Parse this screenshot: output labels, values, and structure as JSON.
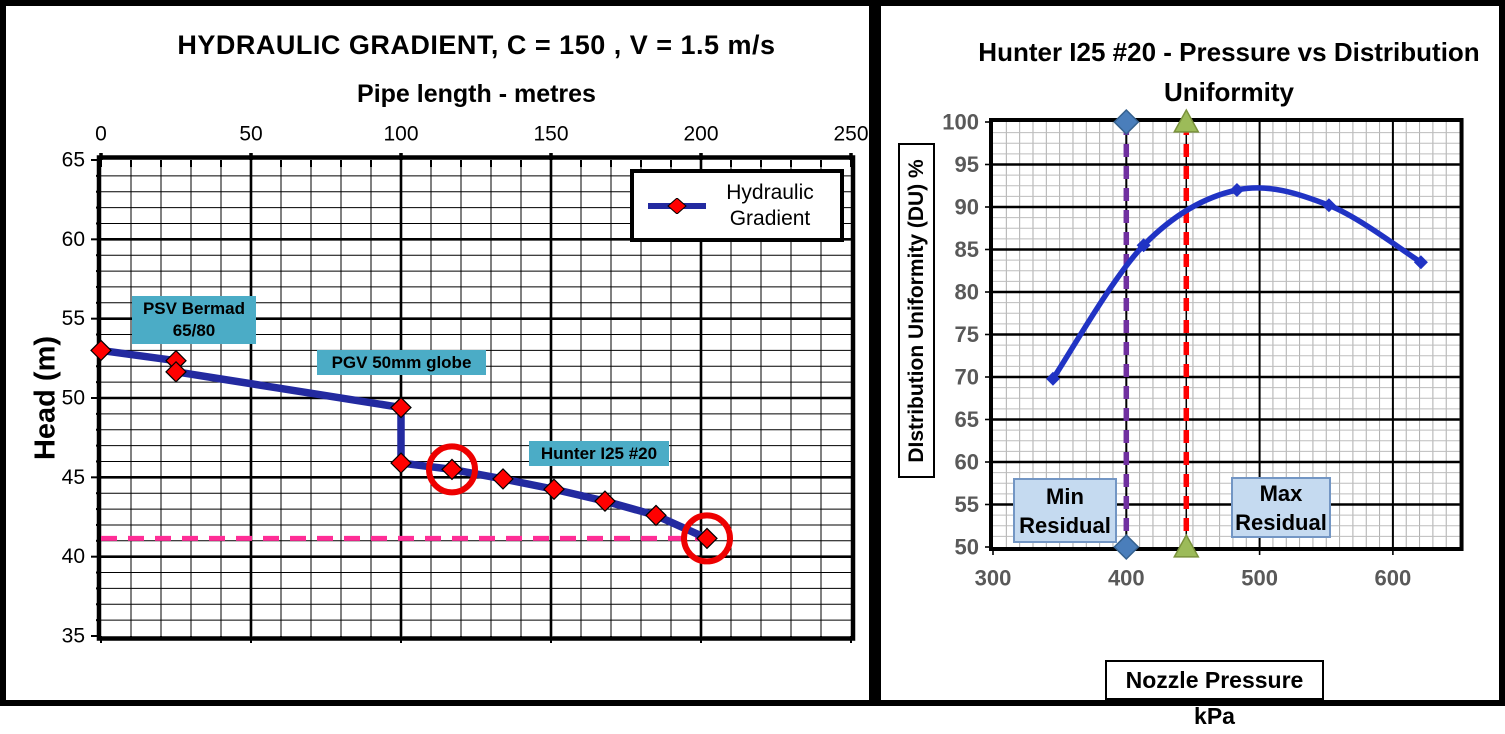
{
  "page": {
    "background": "#FFFFFF",
    "frame_color": "#000000"
  },
  "chart_data": [
    {
      "type": "line",
      "panel": "left",
      "title": "HYDRAULIC GRADIENT,  C = 150 ,  V = 1.5 m/s",
      "xlabel": "Pipe length - metres",
      "ylabel": "Head (m)",
      "xlim": [
        0,
        250
      ],
      "ylim": [
        35,
        65
      ],
      "x_ticks": [
        0,
        50,
        100,
        150,
        200,
        250
      ],
      "y_ticks": [
        65,
        60,
        55,
        50,
        45,
        40,
        35
      ],
      "x_minor_step": 10,
      "x_major_step": 50,
      "y_minor_step": 1,
      "y_major_step": 5,
      "grid": "both",
      "x_axis_position": "top",
      "legend_position": "top-right",
      "tick_label_color": "#000000",
      "series": [
        {
          "name": "Hydraulic Gradient",
          "color": "#232AA0",
          "marker": "diamond",
          "marker_color": "#FF0000",
          "points": [
            [
              0,
              53
            ],
            [
              25,
              52.35
            ],
            [
              25,
              51.65
            ],
            [
              100,
              49.4
            ],
            [
              100,
              45.9
            ],
            [
              117,
              45.5
            ],
            [
              134,
              44.9
            ],
            [
              151,
              44.25
            ],
            [
              168,
              43.5
            ],
            [
              185,
              42.6
            ],
            [
              202,
              41.15
            ]
          ]
        }
      ],
      "reference_line": {
        "y": 41.15,
        "x_start": 0,
        "x_end": 203,
        "color": "#FF2D96",
        "style": "dashed"
      },
      "highlight_circles": {
        "color": "#EE0000",
        "points": [
          [
            117,
            45.5
          ],
          [
            202,
            41.15
          ]
        ]
      },
      "annotations": [
        {
          "text": "PSV Bermad 65/80",
          "near_x": 25,
          "near_y": 52,
          "bg": "#4BACC6"
        },
        {
          "text": "PGV 50mm globe",
          "near_x": 100,
          "near_y": 49.5,
          "bg": "#4BACC6"
        },
        {
          "text": "Hunter I25 #20",
          "near_x": 150,
          "near_y": 46,
          "bg": "#4BACC6"
        }
      ]
    },
    {
      "type": "line",
      "panel": "right",
      "title": "Hunter I25 #20 - Pressure vs Distribution Uniformity",
      "xlabel": "Nozzle Pressure kPa",
      "ylabel": "DIstribution Uniformity (DU) %",
      "xlim": [
        300,
        650
      ],
      "ylim": [
        50,
        100
      ],
      "x_ticks": [
        300,
        400,
        500,
        600
      ],
      "y_ticks": [
        100,
        95,
        90,
        85,
        80,
        75,
        70,
        65,
        60,
        55,
        50
      ],
      "x_minor_step": 10,
      "x_major_step": 100,
      "y_minor_step": 1.25,
      "y_major_step": 5,
      "grid": "both",
      "tick_label_color": "#595959",
      "series": [
        {
          "name": "Distribution Uniformity",
          "color": "#2033C4",
          "marker": "diamond",
          "smooth": true,
          "points": [
            [
              345,
              69.8
            ],
            [
              413,
              85.5
            ],
            [
              483,
              92
            ],
            [
              552,
              90.2
            ],
            [
              621,
              83.5
            ]
          ]
        }
      ],
      "vertical_lines": [
        {
          "x": 400,
          "label": "Min Residual",
          "color": "#7030A0",
          "style": "dashed",
          "end_marker": "diamond",
          "end_marker_color": "#4A7EBB"
        },
        {
          "x": 445,
          "label": "Max Residual",
          "color": "#FF0000",
          "style": "dashed",
          "end_marker": "triangle",
          "end_marker_color": "#9CBB59"
        }
      ],
      "annotation_box_color": "#C5DAF0"
    }
  ]
}
